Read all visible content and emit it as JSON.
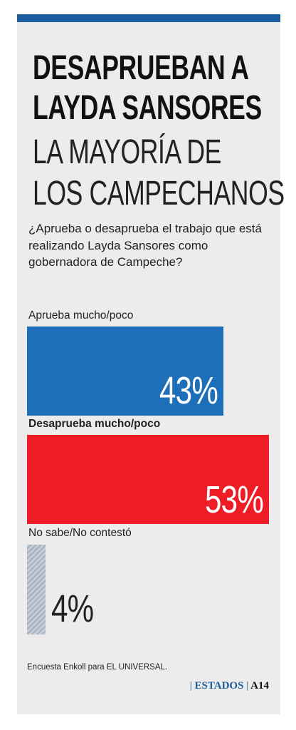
{
  "header": {
    "title_bold": [
      "DESAPRUEBAN A",
      "LAYDA SANSORES"
    ],
    "title_light": [
      "LA MAYORÍA DE",
      "LOS CAMPECHANOS"
    ]
  },
  "question": "¿Aprueba o desaprueba el trabajo que está realizando Layda Sansores como gobernadora de Campeche?",
  "colors": {
    "accent": "#1b5c9e",
    "approve": "#1e6fba",
    "disapprove": "#ee1c24",
    "no_answer": "#b6c0cb"
  },
  "chart_data": {
    "type": "bar",
    "orientation": "horizontal",
    "categories": [
      "Aprueba mucho/poco",
      "Desaprueba mucho/poco",
      "No sabe/No contestó"
    ],
    "values": [
      43,
      53,
      4
    ],
    "value_labels": [
      "43%",
      "53%",
      "4%"
    ],
    "unit": "%",
    "xlim": [
      0,
      53
    ]
  },
  "footer": {
    "source": "Encuesta Enkoll para EL UNIVERSAL.",
    "section_marker": "|",
    "section": "ESTADOS",
    "separator": "|",
    "page": "A14"
  }
}
